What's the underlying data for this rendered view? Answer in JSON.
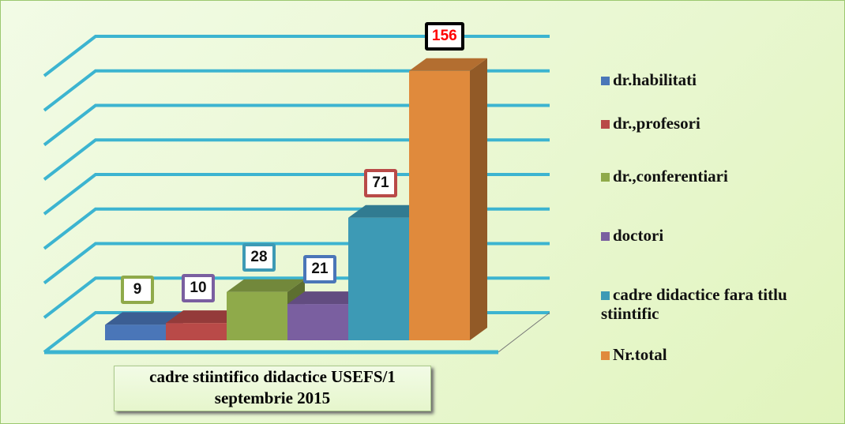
{
  "chart_data": {
    "type": "bar3d",
    "categories": [
      "cadre stiintifico didactice USEFS/1 septembrie 2015"
    ],
    "series": [
      {
        "name": "dr.habilitati",
        "color": "#4a76b8",
        "label_border": "#8faa4a",
        "values": [
          9
        ]
      },
      {
        "name": "dr.,profesori",
        "color": "#b94a48",
        "label_border": "#7a5fa0",
        "values": [
          10
        ]
      },
      {
        "name": "dr.,conferentiari",
        "color": "#8faa4a",
        "label_border": "#3d9ab5",
        "values": [
          28
        ]
      },
      {
        "name": "doctori",
        "color": "#7a5fa0",
        "label_border": "#4a76b8",
        "values": [
          21
        ]
      },
      {
        "name": "cadre didactice fara titlu stiintific",
        "color": "#3d9ab5",
        "label_border": "#b94a48",
        "values": [
          71
        ]
      },
      {
        "name": "Nr.total",
        "color": "#e08a3c",
        "label_border": "#000000",
        "label_color": "#ff0000",
        "values": [
          156
        ]
      }
    ],
    "ylim": [
      0,
      160
    ],
    "yticks": [
      0,
      20,
      40,
      60,
      80,
      100,
      120,
      140,
      160
    ],
    "grid": true,
    "grid_color": "#3cb4d0",
    "legend": "right"
  }
}
